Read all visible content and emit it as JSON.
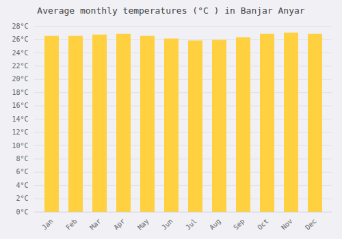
{
  "chart_data": {
    "type": "bar",
    "title": "Average monthly temperatures (°C ) in Banjar Anyar",
    "categories": [
      "Jan",
      "Feb",
      "Mar",
      "Apr",
      "May",
      "Jun",
      "Jul",
      "Aug",
      "Sep",
      "Oct",
      "Nov",
      "Dec"
    ],
    "values": [
      26.5,
      26.5,
      26.7,
      26.8,
      26.5,
      26.1,
      25.8,
      25.9,
      26.3,
      26.8,
      27.0,
      26.8
    ],
    "color": "#FFD040",
    "ylim": [
      0,
      28
    ],
    "yticks": [
      {
        "value": 0,
        "label": "0°C"
      },
      {
        "value": 2,
        "label": "2°C"
      },
      {
        "value": 4,
        "label": "4°C"
      },
      {
        "value": 6,
        "label": "6°C"
      },
      {
        "value": 8,
        "label": "8°C"
      },
      {
        "value": 10,
        "label": "10°C"
      },
      {
        "value": 12,
        "label": "12°C"
      },
      {
        "value": 14,
        "label": "14°C"
      },
      {
        "value": 16,
        "label": "16°C"
      },
      {
        "value": 18,
        "label": "18°C"
      },
      {
        "value": 20,
        "label": "20°C"
      },
      {
        "value": 22,
        "label": "22°C"
      },
      {
        "value": 24,
        "label": "24°C"
      },
      {
        "value": 26,
        "label": "26°C"
      },
      {
        "value": 28,
        "label": "28°C"
      }
    ],
    "grid": true
  }
}
